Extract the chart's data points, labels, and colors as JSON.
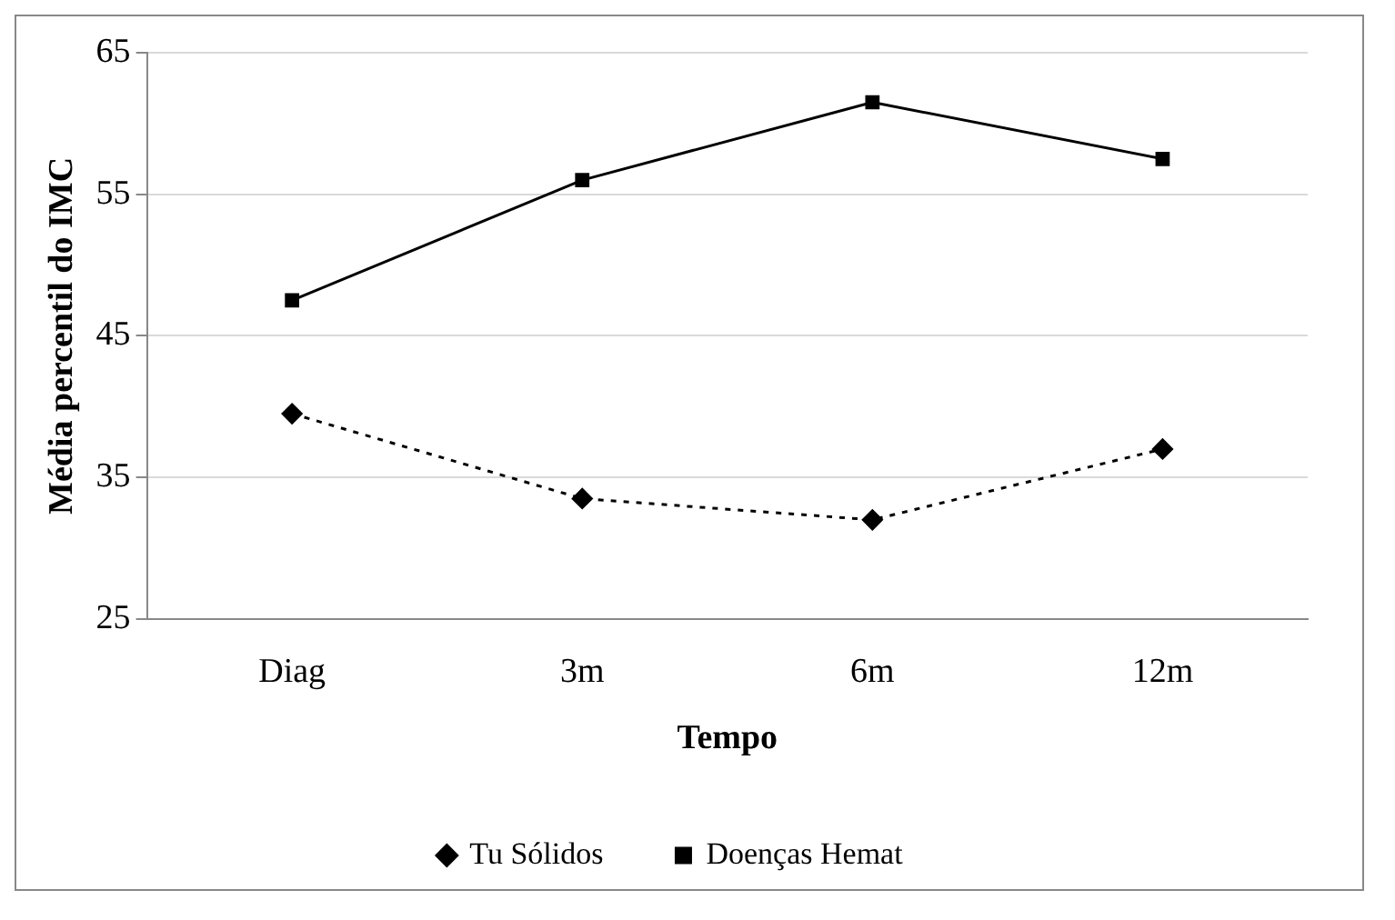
{
  "chart_data": {
    "type": "line",
    "xlabel": "Tempo",
    "ylabel": "Média percentil do IMC",
    "categories": [
      "Diag",
      "3m",
      "6m",
      "12m"
    ],
    "series": [
      {
        "name": "Tu Sólidos",
        "color": "#000000",
        "values": [
          39.5,
          33.5,
          32,
          37
        ],
        "marker": "diamond",
        "line_style": "dotted"
      },
      {
        "name": "Doenças Hemat",
        "color": "#000000",
        "values": [
          47.5,
          56,
          61.5,
          57.5
        ],
        "marker": "square",
        "line_style": "solid"
      }
    ],
    "ylim": [
      25,
      65
    ],
    "yticks": [
      25,
      35,
      45,
      55,
      65
    ],
    "grid": "y",
    "legend": "bottom"
  }
}
